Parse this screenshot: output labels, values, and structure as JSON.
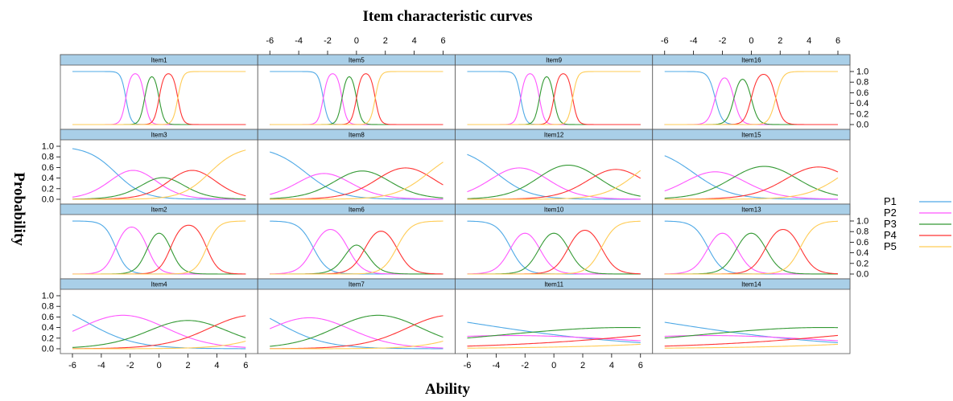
{
  "chart_data": {
    "type": "line",
    "title": "Item characteristic curves",
    "xlabel": "Ability",
    "ylabel": "Probability",
    "xlim": [
      -6,
      6
    ],
    "ylim": [
      0,
      1
    ],
    "x_ticks": [
      -6,
      -4,
      -2,
      0,
      2,
      4,
      6
    ],
    "y_ticks": [
      0.0,
      0.2,
      0.4,
      0.6,
      0.8,
      1.0
    ],
    "y_tick_labels": [
      "0.0",
      "0.2",
      "0.4",
      "0.6",
      "0.8",
      "1.0"
    ],
    "layout": {
      "columns": 4,
      "rows": 4
    },
    "legend": {
      "placement": "right",
      "entries": [
        {
          "name": "P1",
          "color": "#4FA9E6"
        },
        {
          "name": "P2",
          "color": "#FF55FF"
        },
        {
          "name": "P3",
          "color": "#339933"
        },
        {
          "name": "P4",
          "color": "#FF3333"
        },
        {
          "name": "P5",
          "color": "#FFCC55"
        }
      ]
    },
    "panels": [
      {
        "item": "Item1",
        "a": 3.5,
        "b": [
          -2.3,
          -1.0,
          0.0,
          1.3
        ]
      },
      {
        "item": "Item5",
        "a": 3.5,
        "b": [
          -2.3,
          -1.0,
          0.0,
          1.3
        ]
      },
      {
        "item": "Item9",
        "a": 3.5,
        "b": [
          -2.3,
          -1.0,
          0.0,
          1.3
        ]
      },
      {
        "item": "Item16",
        "a": 2.5,
        "b": [
          -2.5,
          -1.2,
          0.0,
          1.7
        ]
      },
      {
        "item": "Item3",
        "a": 0.6,
        "b": [
          -3.0,
          -0.6,
          1.1,
          3.5
        ]
      },
      {
        "item": "Item8",
        "a": 0.5,
        "b": [
          -3.5,
          -1.0,
          1.8,
          5.0
        ]
      },
      {
        "item": "Item12",
        "a": 0.5,
        "b": [
          -4.0,
          -0.8,
          2.8,
          5.8
        ]
      },
      {
        "item": "Item15",
        "a": 0.45,
        "b": [
          -4.0,
          -1.0,
          2.8,
          6.5
        ]
      },
      {
        "item": "Item2",
        "a": 1.5,
        "b": [
          -3.0,
          -0.8,
          0.8,
          3.3
        ]
      },
      {
        "item": "Item6",
        "a": 1.2,
        "b": [
          -3.0,
          -0.6,
          0.6,
          2.8
        ]
      },
      {
        "item": "Item10",
        "a": 1.2,
        "b": [
          -3.0,
          -1.0,
          1.0,
          3.3
        ]
      },
      {
        "item": "Item13",
        "a": 1.2,
        "b": [
          -3.0,
          -1.0,
          1.0,
          3.4
        ]
      },
      {
        "item": "Item4",
        "a": 0.35,
        "b": [
          -5.0,
          0.0,
          4.0,
          9.0
        ]
      },
      {
        "item": "Item7",
        "a": 0.35,
        "b": [
          -5.5,
          -1.0,
          4.0,
          9.0
        ]
      },
      {
        "item": "Item11",
        "a": 0.1,
        "b": [
          -6.0,
          0.0,
          10.0,
          20.0
        ]
      },
      {
        "item": "Item14",
        "a": 0.1,
        "b": [
          -6.0,
          0.0,
          10.0,
          20.0
        ]
      }
    ]
  }
}
